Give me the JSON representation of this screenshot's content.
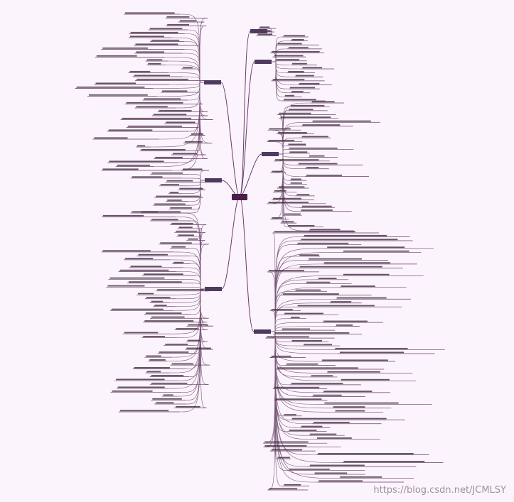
{
  "watermark": "https://blog.csdn.net/JCMLSY"
}
